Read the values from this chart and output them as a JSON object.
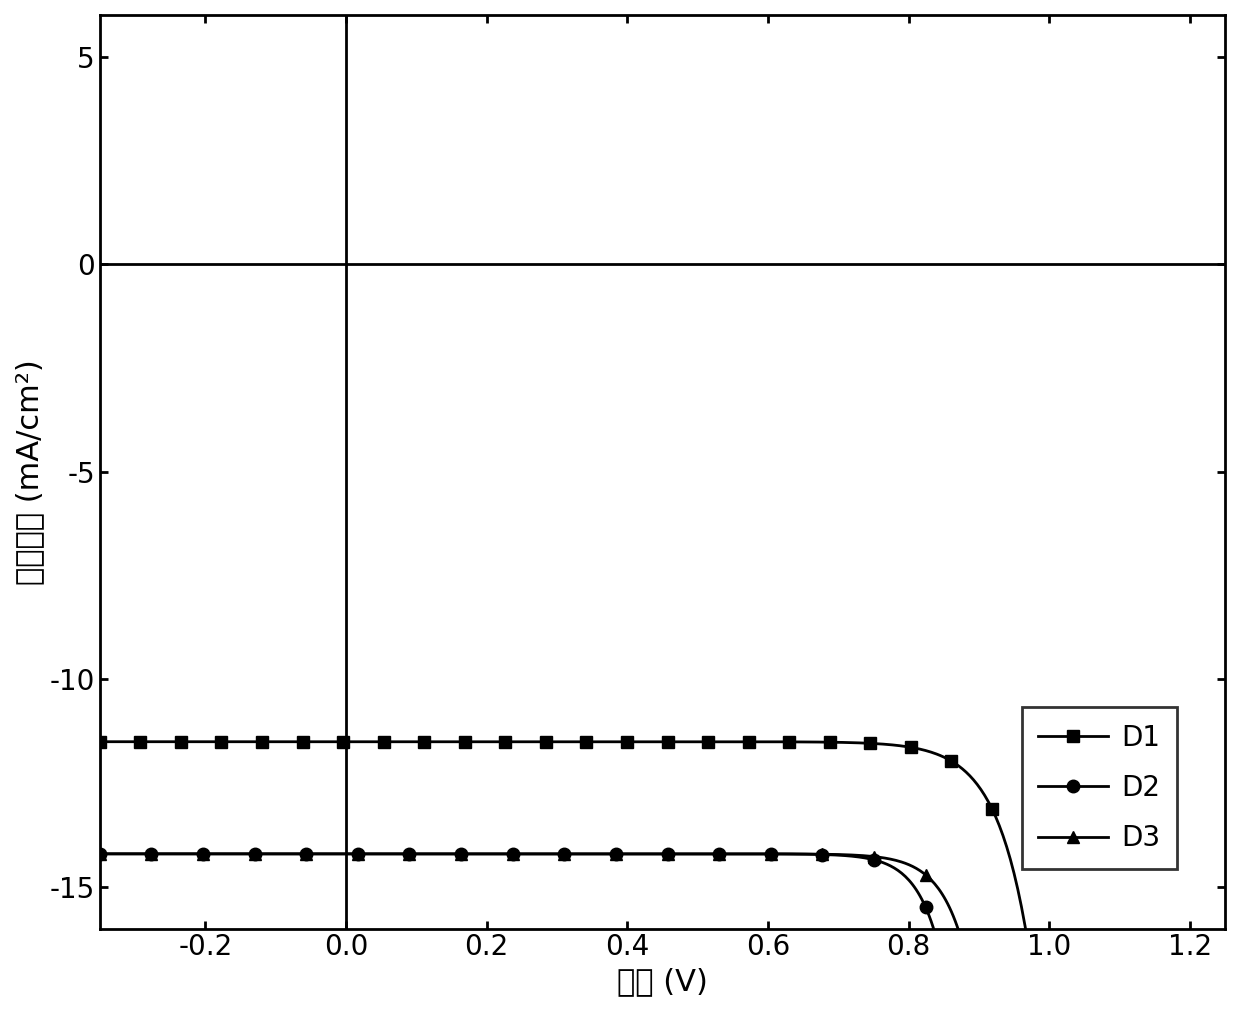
{
  "title": "",
  "xlabel": "电压 (V)",
  "ylabel": "电流密度 (mA/cm²)",
  "xlim": [
    -0.35,
    1.25
  ],
  "ylim": [
    -16,
    6
  ],
  "xticks": [
    -0.2,
    0.0,
    0.2,
    0.4,
    0.6,
    0.8,
    1.0,
    1.2
  ],
  "yticks": [
    -15,
    -10,
    -5,
    0,
    5
  ],
  "background_color": "#ffffff",
  "line_color": "#000000",
  "series": [
    {
      "label": "D1",
      "marker": "s",
      "Voc": 1.01,
      "Jsc": -11.5,
      "n_ideal": 1.8,
      "color": "#000000"
    },
    {
      "label": "D2",
      "marker": "o",
      "Voc": 0.905,
      "Jsc": -14.2,
      "n_ideal": 1.3,
      "color": "#000000"
    },
    {
      "label": "D3",
      "marker": "^",
      "Voc": 0.945,
      "Jsc": -14.2,
      "n_ideal": 1.4,
      "color": "#000000"
    }
  ],
  "legend_loc": "lower right",
  "fontsize_label": 22,
  "fontsize_tick": 20,
  "fontsize_legend": 20,
  "linewidth": 2.0,
  "markersize": 9
}
